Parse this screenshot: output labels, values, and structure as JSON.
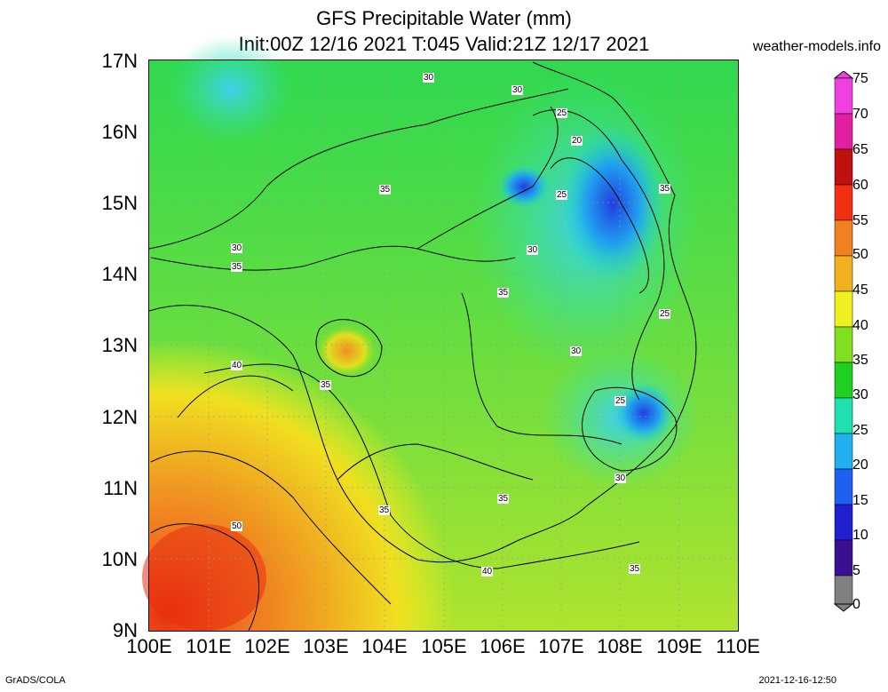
{
  "header": {
    "title_line1": "GFS Precipitable Water (mm)",
    "title_line2": "Init:00Z 12/16 2021 T:045 Valid:21Z 12/17 2021",
    "site": "weather-models.info"
  },
  "footer": {
    "left": "GrADS/COLA",
    "right": "2021-12-16-12:50"
  },
  "map": {
    "lon_range": [
      100,
      110
    ],
    "lat_range": [
      9,
      17
    ],
    "lat_labels": [
      "17N",
      "16N",
      "15N",
      "14N",
      "13N",
      "12N",
      "11N",
      "10N",
      "9N"
    ],
    "lon_labels": [
      "100E",
      "101E",
      "102E",
      "103E",
      "104E",
      "105E",
      "106E",
      "107E",
      "108E",
      "109E",
      "110E"
    ],
    "contour_labels": [
      "30",
      "30",
      "25",
      "20",
      "35",
      "25",
      "35",
      "30",
      "30",
      "35",
      "35",
      "25",
      "40",
      "35",
      "30",
      "25",
      "30",
      "50",
      "35",
      "35",
      "40",
      "35"
    ]
  },
  "colorbar": {
    "levels": [
      0,
      5,
      10,
      15,
      20,
      25,
      30,
      35,
      40,
      45,
      50,
      55,
      60,
      65,
      70,
      75
    ],
    "colors": [
      "#808080",
      "#6a3a8a",
      "#3a1090",
      "#2020d0",
      "#2060f0",
      "#20b0f0",
      "#20e0b0",
      "#20d020",
      "#80e020",
      "#f0f020",
      "#f0b020",
      "#f08020",
      "#f03010",
      "#c01010",
      "#e020a0",
      "#f040e0"
    ]
  }
}
